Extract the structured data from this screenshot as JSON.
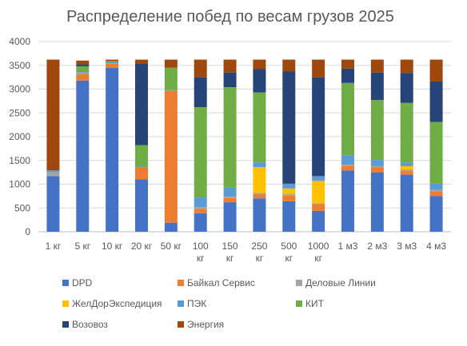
{
  "chart_data": {
    "type": "bar",
    "stacked": true,
    "title": "Распределение побед по весам грузов 2025",
    "xlabel": "",
    "ylabel": "",
    "ylim": [
      0,
      4000
    ],
    "yticks": [
      0,
      500,
      1000,
      1500,
      2000,
      2500,
      3000,
      3500,
      4000
    ],
    "grid": true,
    "legend_position": "bottom",
    "categories": [
      [
        "1 кг"
      ],
      [
        "5 кг"
      ],
      [
        "10 кг"
      ],
      [
        "20 кг"
      ],
      [
        "50 кг"
      ],
      [
        "100",
        "кг"
      ],
      [
        "150",
        "кг"
      ],
      [
        "250",
        "кг"
      ],
      [
        "500",
        "кг"
      ],
      [
        "1000",
        "кг"
      ],
      [
        "1 м3"
      ],
      [
        "2 м3"
      ],
      [
        "3 м3"
      ],
      [
        "4 м3"
      ]
    ],
    "series": [
      {
        "name": "DPD",
        "color": "#4472C4",
        "values": [
          1170,
          3180,
          3450,
          1100,
          190,
          390,
          620,
          700,
          640,
          440,
          1290,
          1250,
          1200,
          750
        ]
      },
      {
        "name": "Байкал Сервис",
        "color": "#ED7D31",
        "values": [
          0,
          140,
          80,
          260,
          2780,
          90,
          90,
          90,
          120,
          140,
          100,
          110,
          90,
          100
        ]
      },
      {
        "name": "Деловые Линии",
        "color": "#A5A5A5",
        "values": [
          80,
          20,
          10,
          0,
          0,
          40,
          30,
          30,
          30,
          20,
          20,
          20,
          20,
          30
        ]
      },
      {
        "name": "ЖелДорЭкспедиция",
        "color": "#FFC000",
        "values": [
          0,
          0,
          0,
          0,
          0,
          0,
          0,
          540,
          120,
          470,
          0,
          0,
          70,
          0
        ]
      },
      {
        "name": "ПЭК",
        "color": "#5B9BD5",
        "values": [
          40,
          20,
          30,
          10,
          10,
          200,
          190,
          100,
          100,
          100,
          200,
          130,
          80,
          130
        ]
      },
      {
        "name": "КИТ",
        "color": "#70AD47",
        "values": [
          0,
          120,
          20,
          450,
          470,
          1900,
          2110,
          1470,
          0,
          0,
          1520,
          1260,
          1250,
          1300
        ]
      },
      {
        "name": "Возовоз",
        "color": "#264478",
        "values": [
          0,
          40,
          0,
          1720,
          0,
          630,
          310,
          490,
          2360,
          2080,
          300,
          580,
          630,
          850
        ]
      },
      {
        "name": "Энергия",
        "color": "#9E480E",
        "values": [
          2330,
          80,
          30,
          80,
          170,
          370,
          270,
          200,
          250,
          370,
          190,
          270,
          280,
          460
        ]
      }
    ]
  }
}
